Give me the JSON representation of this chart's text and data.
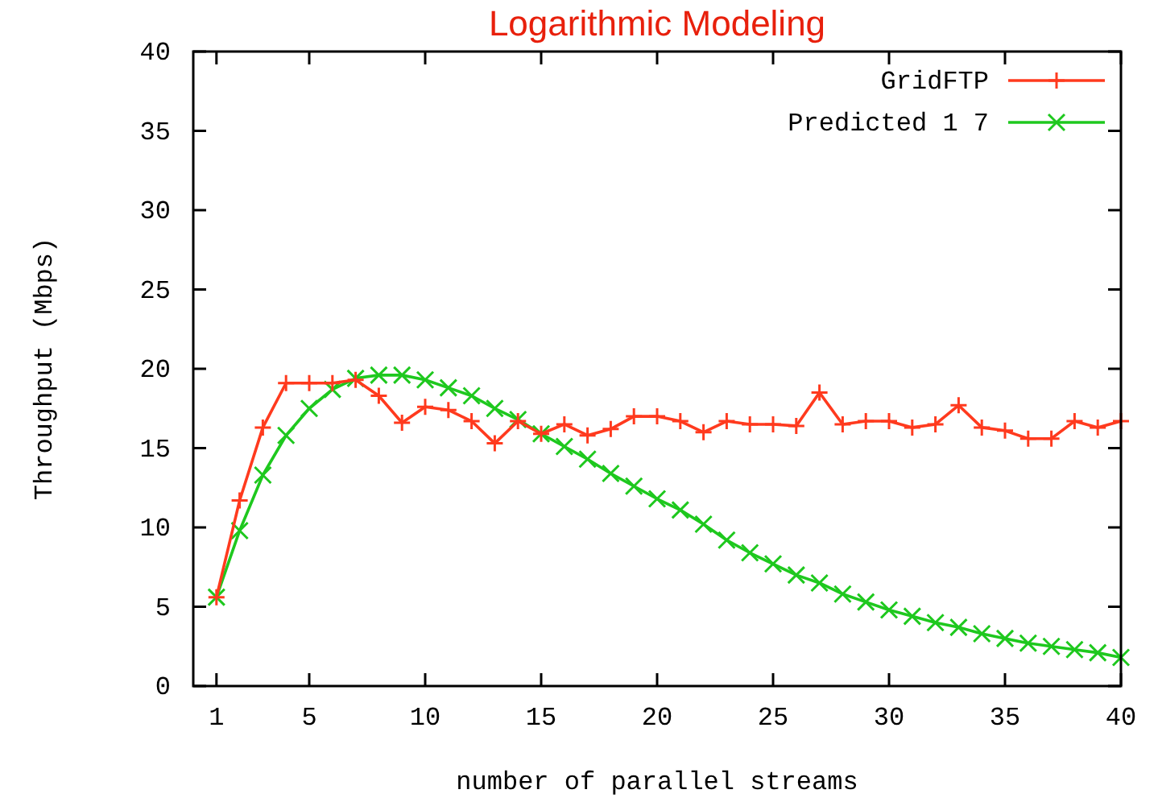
{
  "chart_data": {
    "type": "line",
    "title": "Logarithmic Modeling",
    "xlabel": "number of parallel streams",
    "ylabel": "Throughput (Mbps)",
    "x": [
      1,
      2,
      3,
      4,
      5,
      6,
      7,
      8,
      9,
      10,
      11,
      12,
      13,
      14,
      15,
      16,
      17,
      18,
      19,
      20,
      21,
      22,
      23,
      24,
      25,
      26,
      27,
      28,
      29,
      30,
      31,
      32,
      33,
      34,
      35,
      36,
      37,
      38,
      39,
      40
    ],
    "series": [
      {
        "name": "GridFTP",
        "color": "#ff3a1e",
        "marker": "cross",
        "values": [
          5.6,
          11.7,
          16.3,
          19.1,
          19.1,
          19.1,
          19.3,
          18.3,
          16.6,
          17.6,
          17.4,
          16.7,
          15.3,
          16.7,
          15.9,
          16.5,
          15.8,
          16.2,
          17.0,
          17.0,
          16.7,
          16.0,
          16.7,
          16.5,
          16.5,
          16.4,
          18.5,
          16.5,
          16.7,
          16.7,
          16.3,
          16.5,
          17.7,
          16.3,
          16.1,
          15.6,
          15.6,
          16.7,
          16.3,
          16.7
        ]
      },
      {
        "name": "Predicted 1 7",
        "color": "#1ec81e",
        "marker": "cross",
        "values": [
          5.6,
          9.8,
          13.3,
          15.8,
          17.5,
          18.7,
          19.4,
          19.6,
          19.6,
          19.3,
          18.8,
          18.3,
          17.5,
          16.8,
          15.9,
          15.1,
          14.3,
          13.4,
          12.6,
          11.8,
          11.1,
          10.2,
          9.2,
          8.4,
          7.7,
          7.0,
          6.5,
          5.8,
          5.3,
          4.8,
          4.4,
          4.0,
          3.7,
          3.3,
          3.0,
          2.7,
          2.5,
          2.3,
          2.1,
          1.8
        ]
      }
    ],
    "xlim": [
      0,
      40
    ],
    "xticks": [
      1,
      5,
      10,
      15,
      20,
      25,
      30,
      35,
      40
    ],
    "ylim": [
      0,
      40
    ],
    "yticks": [
      0,
      5,
      10,
      15,
      20,
      25,
      30,
      35,
      40
    ],
    "grid": false,
    "legend": "top right",
    "line_style": "solid"
  }
}
